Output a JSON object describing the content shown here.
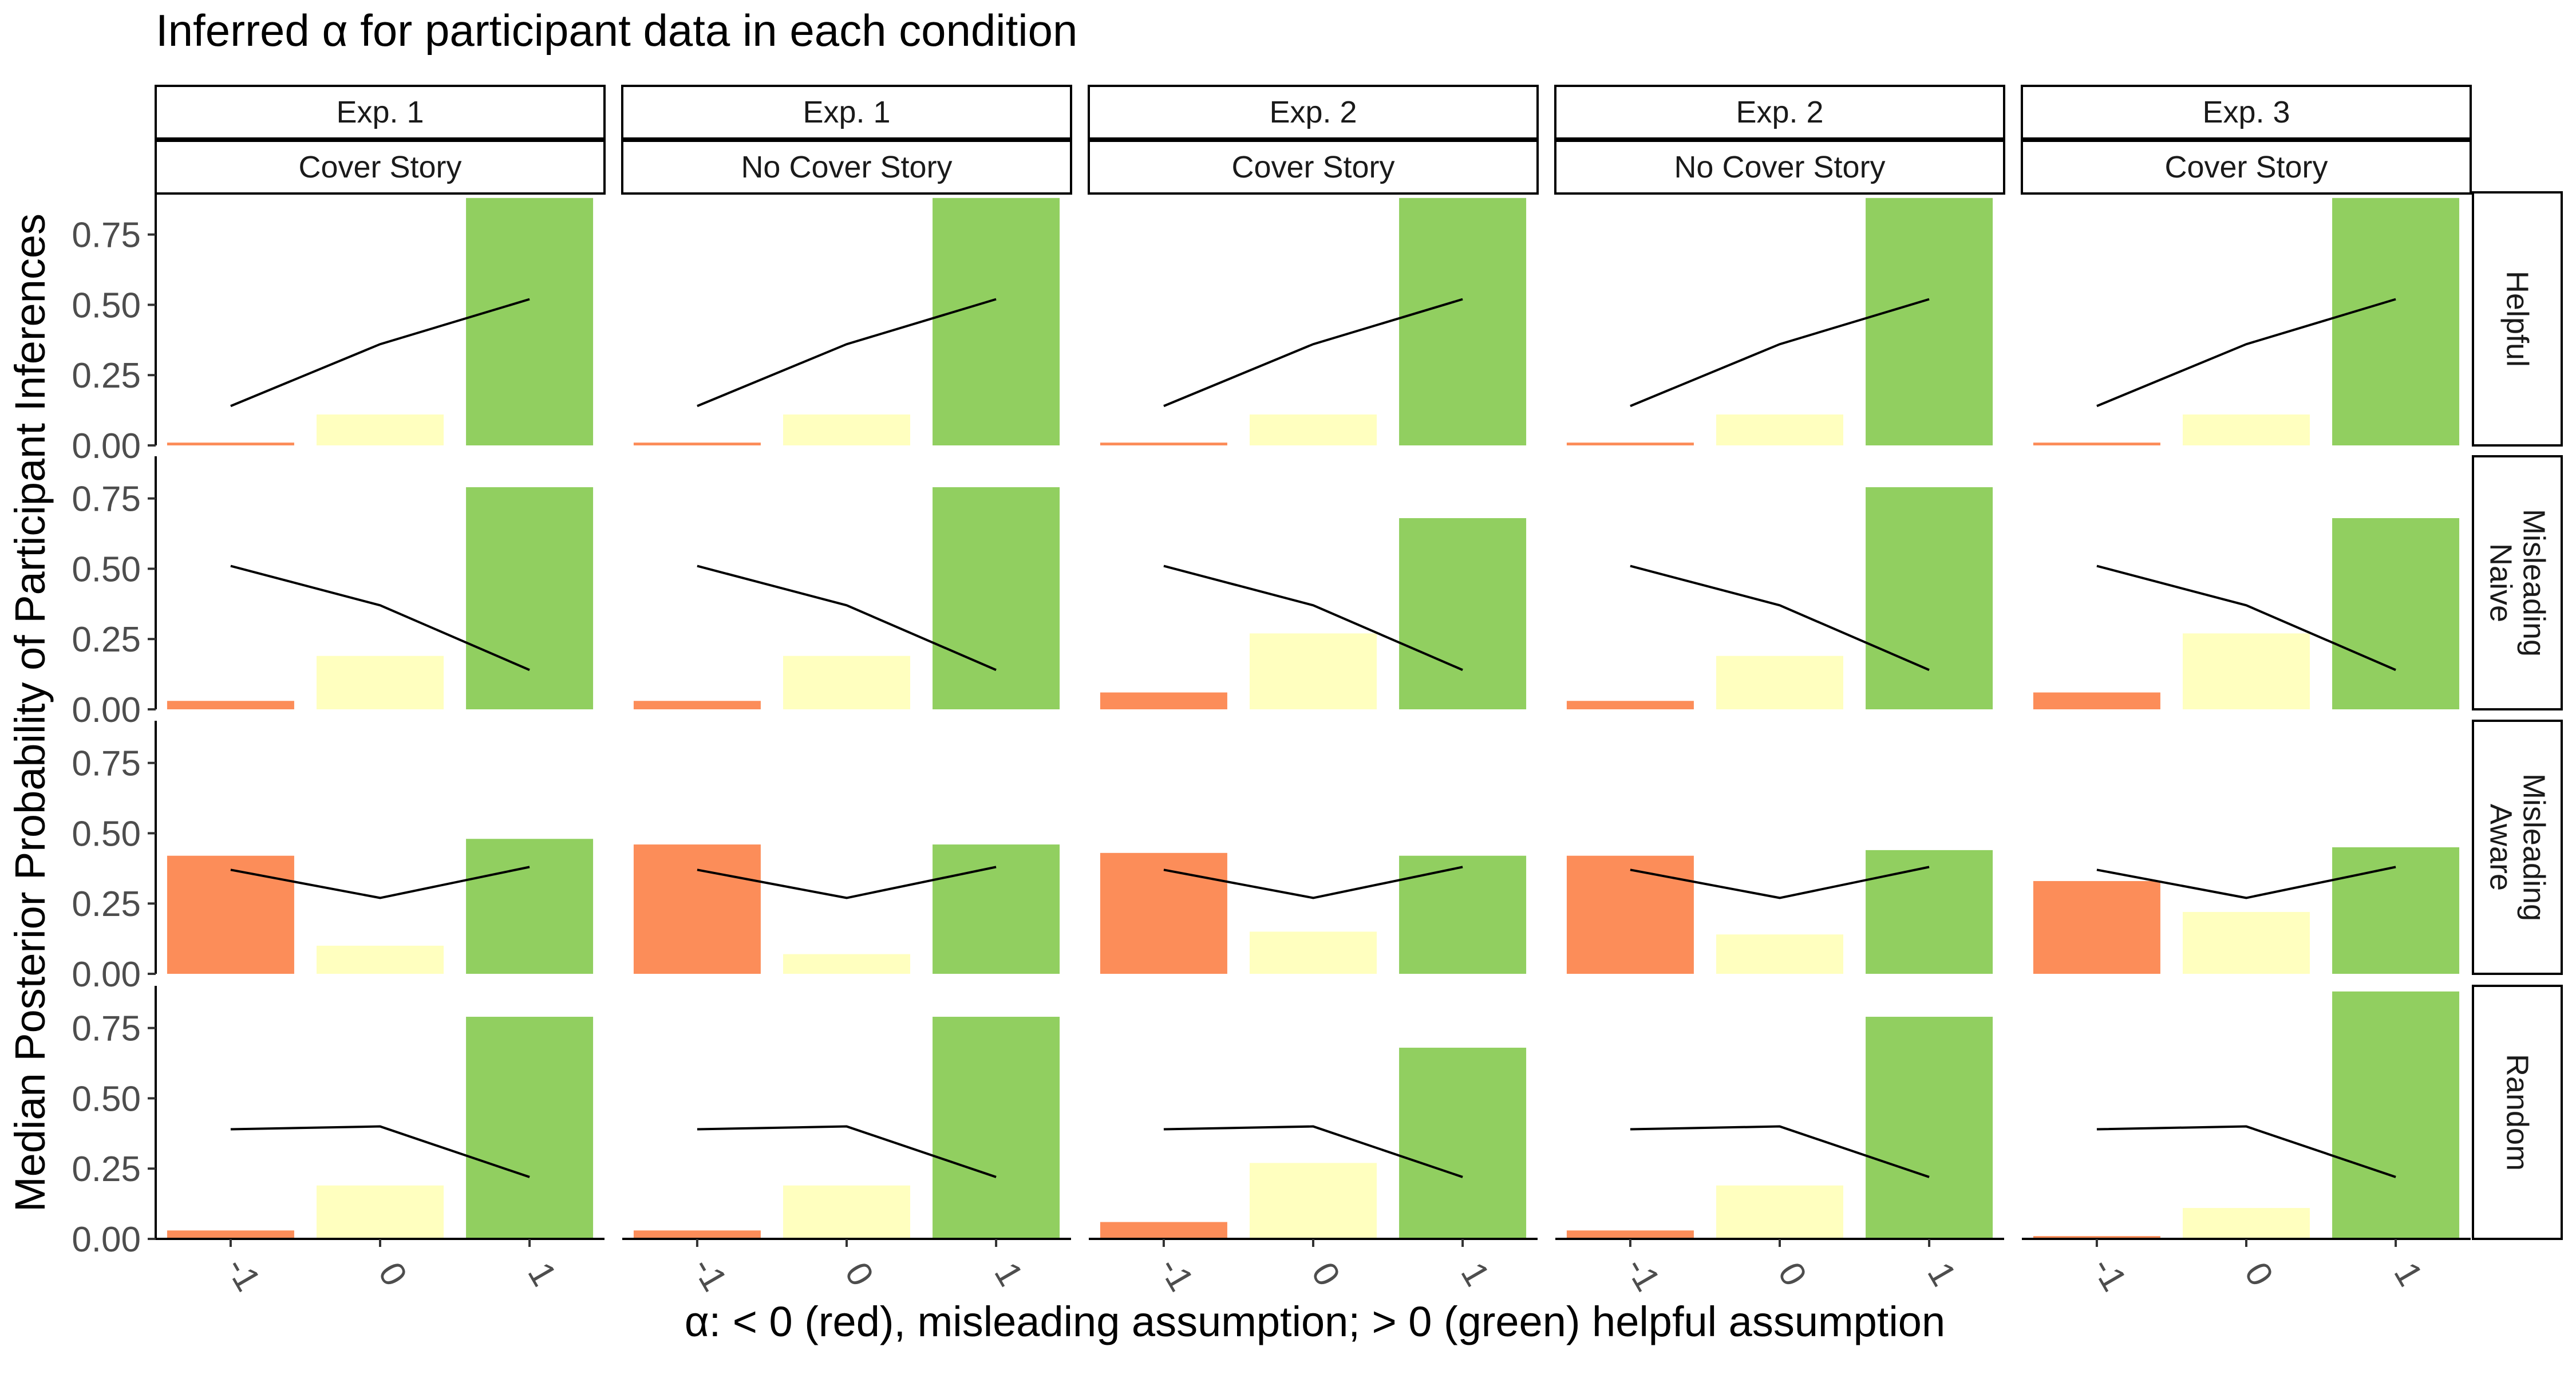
{
  "chart_data": {
    "type": "bar",
    "title": "Inferred α for participant data in each condition",
    "xlabel": "α: < 0 (red), misleading assumption; > 0 (green) helpful assumption",
    "ylabel": "Median Posterior Probability of Participant Inferences",
    "categories": [
      "-1",
      "0",
      "1"
    ],
    "category_colors": [
      "#FC8D59",
      "#FFFFBF",
      "#91CF60"
    ],
    "line_color": "#000000",
    "ylim": [
      0,
      0.9
    ],
    "yticks": [
      0,
      0.25,
      0.5,
      0.75
    ],
    "ytick_labels": [
      "0.00",
      "0.25",
      "0.50",
      "0.75"
    ],
    "columns": [
      {
        "exp": "Exp. 1",
        "story": "Cover Story"
      },
      {
        "exp": "Exp. 1",
        "story": "No Cover Story"
      },
      {
        "exp": "Exp. 2",
        "story": "Cover Story"
      },
      {
        "exp": "Exp. 2",
        "story": "No Cover Story"
      },
      {
        "exp": "Exp. 3",
        "story": "Cover Story"
      }
    ],
    "rows": [
      {
        "label": [
          "Helpful"
        ]
      },
      {
        "label": [
          "Misleading",
          "Naive"
        ]
      },
      {
        "label": [
          "Misleading",
          "Aware"
        ]
      },
      {
        "label": [
          "Random"
        ]
      }
    ],
    "panels": [
      [
        {
          "bars": [
            0.01,
            0.11,
            0.88
          ],
          "line": [
            0.14,
            0.36,
            0.52
          ]
        },
        {
          "bars": [
            0.01,
            0.11,
            0.88
          ],
          "line": [
            0.14,
            0.36,
            0.52
          ]
        },
        {
          "bars": [
            0.01,
            0.11,
            0.88
          ],
          "line": [
            0.14,
            0.36,
            0.52
          ]
        },
        {
          "bars": [
            0.01,
            0.11,
            0.88
          ],
          "line": [
            0.14,
            0.36,
            0.52
          ]
        },
        {
          "bars": [
            0.01,
            0.11,
            0.88
          ],
          "line": [
            0.14,
            0.36,
            0.52
          ]
        }
      ],
      [
        {
          "bars": [
            0.03,
            0.19,
            0.79
          ],
          "line": [
            0.51,
            0.37,
            0.14
          ]
        },
        {
          "bars": [
            0.03,
            0.19,
            0.79
          ],
          "line": [
            0.51,
            0.37,
            0.14
          ]
        },
        {
          "bars": [
            0.06,
            0.27,
            0.68
          ],
          "line": [
            0.51,
            0.37,
            0.14
          ]
        },
        {
          "bars": [
            0.03,
            0.19,
            0.79
          ],
          "line": [
            0.51,
            0.37,
            0.14
          ]
        },
        {
          "bars": [
            0.06,
            0.27,
            0.68
          ],
          "line": [
            0.51,
            0.37,
            0.14
          ]
        }
      ],
      [
        {
          "bars": [
            0.42,
            0.1,
            0.48
          ],
          "line": [
            0.37,
            0.27,
            0.38
          ]
        },
        {
          "bars": [
            0.46,
            0.07,
            0.46
          ],
          "line": [
            0.37,
            0.27,
            0.38
          ]
        },
        {
          "bars": [
            0.43,
            0.15,
            0.42
          ],
          "line": [
            0.37,
            0.27,
            0.38
          ]
        },
        {
          "bars": [
            0.42,
            0.14,
            0.44
          ],
          "line": [
            0.37,
            0.27,
            0.38
          ]
        },
        {
          "bars": [
            0.33,
            0.22,
            0.45
          ],
          "line": [
            0.37,
            0.27,
            0.38
          ]
        }
      ],
      [
        {
          "bars": [
            0.03,
            0.19,
            0.79
          ],
          "line": [
            0.39,
            0.4,
            0.22
          ]
        },
        {
          "bars": [
            0.03,
            0.19,
            0.79
          ],
          "line": [
            0.39,
            0.4,
            0.22
          ]
        },
        {
          "bars": [
            0.06,
            0.27,
            0.68
          ],
          "line": [
            0.39,
            0.4,
            0.22
          ]
        },
        {
          "bars": [
            0.03,
            0.19,
            0.79
          ],
          "line": [
            0.39,
            0.4,
            0.22
          ]
        },
        {
          "bars": [
            0.01,
            0.11,
            0.88
          ],
          "line": [
            0.39,
            0.4,
            0.22
          ]
        }
      ]
    ]
  }
}
